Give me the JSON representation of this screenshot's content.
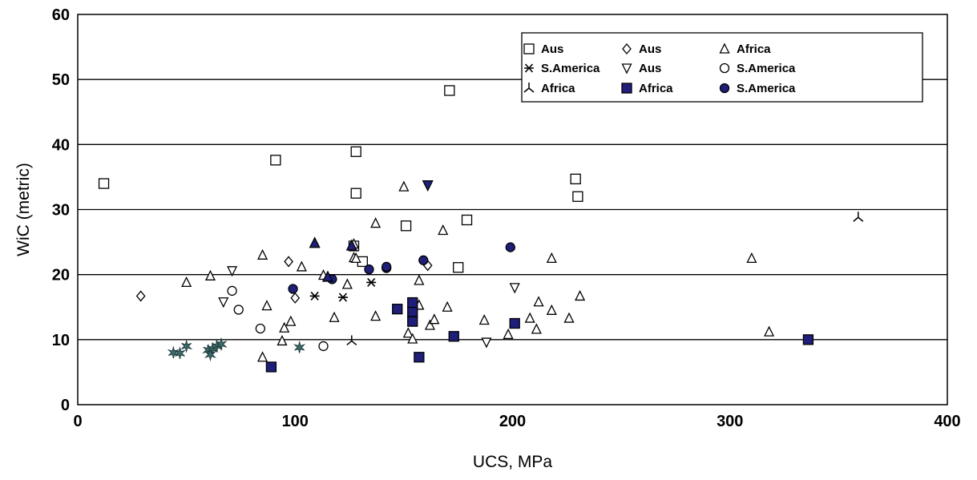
{
  "chart_data": {
    "type": "scatter",
    "title": "",
    "xlabel": "UCS, MPa",
    "ylabel": "WiC (metric)",
    "xlim": [
      0,
      400
    ],
    "ylim": [
      0,
      60
    ],
    "xticks": [
      0,
      100,
      200,
      300,
      400
    ],
    "yticks": [
      0,
      10,
      20,
      30,
      40,
      50,
      60
    ],
    "grid": "horizontal major gridlines",
    "legend_position": "top-right",
    "colors": {
      "filled": "#1f1f7a",
      "star": "#3d6b6b",
      "outline": "#000000"
    },
    "series": [
      {
        "name": "Aus",
        "marker": "square-open",
        "points": [
          [
            12,
            34
          ],
          [
            91,
            37.6
          ],
          [
            128,
            38.9
          ],
          [
            128,
            32.5
          ],
          [
            131,
            22
          ],
          [
            127,
            24.4
          ],
          [
            151,
            27.5
          ],
          [
            171,
            48.3
          ],
          [
            179,
            28.4
          ],
          [
            175,
            21.1
          ],
          [
            229,
            34.7
          ],
          [
            230,
            32
          ]
        ]
      },
      {
        "name": "Aus",
        "marker": "diamond-open",
        "points": [
          [
            29,
            16.7
          ],
          [
            97,
            22
          ],
          [
            100,
            16.4
          ],
          [
            161,
            21.4
          ]
        ]
      },
      {
        "name": "Africa",
        "marker": "triangle-up-open",
        "points": [
          [
            50,
            18.8
          ],
          [
            61,
            19.8
          ],
          [
            85,
            23
          ],
          [
            87,
            15.2
          ],
          [
            85,
            7.3
          ],
          [
            94,
            9.8
          ],
          [
            95,
            11.8
          ],
          [
            98,
            12.8
          ],
          [
            103,
            21.2
          ],
          [
            113,
            19.9
          ],
          [
            118,
            13.4
          ],
          [
            124,
            18.5
          ],
          [
            127,
            22.6
          ],
          [
            128,
            22.5
          ],
          [
            127,
            24.7
          ],
          [
            137,
            13.6
          ],
          [
            137,
            27.9
          ],
          [
            150,
            33.5
          ],
          [
            152,
            11
          ],
          [
            154,
            10.1
          ],
          [
            157,
            15.3
          ],
          [
            157,
            19.1
          ],
          [
            162,
            12.2
          ],
          [
            164,
            13.1
          ],
          [
            168,
            26.8
          ],
          [
            170,
            15
          ],
          [
            187,
            13
          ],
          [
            198,
            10.8
          ],
          [
            208,
            13.3
          ],
          [
            211,
            11.6
          ],
          [
            212,
            15.8
          ],
          [
            218,
            22.5
          ],
          [
            218,
            14.5
          ],
          [
            226,
            13.3
          ],
          [
            231,
            16.7
          ],
          [
            310,
            22.5
          ],
          [
            318,
            11.2
          ]
        ]
      },
      {
        "name": "S.America",
        "marker": "asterisk",
        "points": [
          [
            109,
            16.7
          ],
          [
            122,
            16.5
          ],
          [
            135,
            18.8
          ]
        ]
      },
      {
        "name": "Aus",
        "marker": "triangle-down-open",
        "points": [
          [
            67,
            15.8
          ],
          [
            71,
            20.6
          ],
          [
            188,
            9.6
          ],
          [
            201,
            18
          ]
        ]
      },
      {
        "name": "S.America",
        "marker": "circle-open",
        "points": [
          [
            71,
            17.5
          ],
          [
            74,
            14.6
          ],
          [
            84,
            11.7
          ],
          [
            113,
            9
          ]
        ]
      },
      {
        "name": "Africa",
        "marker": "tri-line",
        "points": [
          [
            126,
            9.8
          ],
          [
            359,
            28.8
          ]
        ]
      },
      {
        "name": "Africa",
        "marker": "square-filled",
        "points": [
          [
            89,
            5.8
          ],
          [
            147,
            14.7
          ],
          [
            154,
            12.8
          ],
          [
            154,
            14.3
          ],
          [
            154,
            15.7
          ],
          [
            157,
            7.3
          ],
          [
            173,
            10.5
          ],
          [
            201,
            12.5
          ],
          [
            336,
            10
          ]
        ]
      },
      {
        "name": "S.America",
        "marker": "circle-filled",
        "points": [
          [
            99,
            17.8
          ],
          [
            117,
            19.3
          ],
          [
            134,
            20.8
          ],
          [
            142,
            21
          ],
          [
            142,
            21.2
          ],
          [
            159,
            22.2
          ],
          [
            199,
            24.2
          ]
        ]
      },
      {
        "name": "Aus",
        "marker": "triangle-up-filled",
        "points": [
          [
            109,
            24.8
          ],
          [
            115,
            19.6
          ],
          [
            126,
            24.4
          ]
        ]
      },
      {
        "name": "Africa",
        "marker": "triangle-down-filled",
        "points": [
          [
            161,
            33.8
          ]
        ]
      },
      {
        "name": "S.America",
        "marker": "star-filled",
        "points": [
          [
            44,
            8
          ],
          [
            47,
            7.9
          ],
          [
            50,
            9
          ],
          [
            60,
            8.4
          ],
          [
            61,
            7.7
          ],
          [
            62,
            8.6
          ],
          [
            64,
            9
          ],
          [
            66,
            9.3
          ],
          [
            102,
            8.8
          ]
        ]
      }
    ],
    "legend_layout": [
      [
        0,
        3,
        6,
        9
      ],
      [
        1,
        4,
        7,
        10
      ],
      [
        2,
        5,
        8,
        11
      ]
    ]
  }
}
